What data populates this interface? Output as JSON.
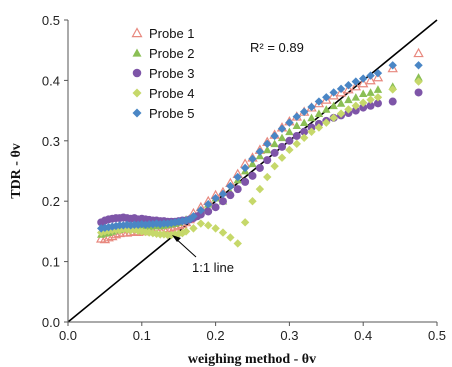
{
  "chart_data": {
    "type": "scatter",
    "xlim": [
      0,
      0.5
    ],
    "ylim": [
      0,
      0.5
    ],
    "xticks": [
      "0.0",
      "0.1",
      "0.2",
      "0.3",
      "0.4",
      "0.5"
    ],
    "yticks": [
      "0.0",
      "0.1",
      "0.2",
      "0.3",
      "0.4",
      "0.5"
    ],
    "xlabel": "weighing method - θv",
    "ylabel": "TDR - θv",
    "legend_position": "top-left",
    "grid": false,
    "annotations": {
      "r2_label": "R² = 0.89",
      "line_label": "1:1 line"
    },
    "reference_line": {
      "name": "1:1 line",
      "x": [
        0,
        0.5
      ],
      "y": [
        0,
        0.5
      ],
      "color": "#000000"
    },
    "series": [
      {
        "name": "Probe 1",
        "marker": "triangle-open",
        "color": "#E8887E",
        "points": [
          [
            0.045,
            0.138
          ],
          [
            0.05,
            0.137
          ],
          [
            0.055,
            0.14
          ],
          [
            0.06,
            0.142
          ],
          [
            0.065,
            0.145
          ],
          [
            0.07,
            0.147
          ],
          [
            0.075,
            0.148
          ],
          [
            0.08,
            0.148
          ],
          [
            0.085,
            0.149
          ],
          [
            0.09,
            0.15
          ],
          [
            0.095,
            0.149
          ],
          [
            0.1,
            0.151
          ],
          [
            0.105,
            0.15
          ],
          [
            0.11,
            0.152
          ],
          [
            0.115,
            0.151
          ],
          [
            0.12,
            0.153
          ],
          [
            0.125,
            0.152
          ],
          [
            0.13,
            0.154
          ],
          [
            0.135,
            0.155
          ],
          [
            0.14,
            0.156
          ],
          [
            0.145,
            0.158
          ],
          [
            0.15,
            0.16
          ],
          [
            0.155,
            0.162
          ],
          [
            0.16,
            0.165
          ],
          [
            0.165,
            0.17
          ],
          [
            0.17,
            0.18
          ],
          [
            0.18,
            0.19
          ],
          [
            0.19,
            0.2
          ],
          [
            0.2,
            0.21
          ],
          [
            0.21,
            0.215
          ],
          [
            0.22,
            0.23
          ],
          [
            0.23,
            0.245
          ],
          [
            0.24,
            0.262
          ],
          [
            0.25,
            0.272
          ],
          [
            0.26,
            0.285
          ],
          [
            0.27,
            0.298
          ],
          [
            0.28,
            0.31
          ],
          [
            0.29,
            0.322
          ],
          [
            0.3,
            0.332
          ],
          [
            0.31,
            0.34
          ],
          [
            0.32,
            0.348
          ],
          [
            0.33,
            0.355
          ],
          [
            0.34,
            0.362
          ],
          [
            0.35,
            0.368
          ],
          [
            0.36,
            0.375
          ],
          [
            0.37,
            0.38
          ],
          [
            0.38,
            0.385
          ],
          [
            0.39,
            0.39
          ],
          [
            0.4,
            0.395
          ],
          [
            0.41,
            0.4
          ],
          [
            0.42,
            0.405
          ],
          [
            0.44,
            0.42
          ],
          [
            0.475,
            0.445
          ]
        ]
      },
      {
        "name": "Probe 2",
        "marker": "triangle",
        "color": "#8BBF55",
        "points": [
          [
            0.045,
            0.145
          ],
          [
            0.05,
            0.147
          ],
          [
            0.055,
            0.148
          ],
          [
            0.06,
            0.15
          ],
          [
            0.065,
            0.152
          ],
          [
            0.07,
            0.153
          ],
          [
            0.075,
            0.155
          ],
          [
            0.08,
            0.155
          ],
          [
            0.085,
            0.156
          ],
          [
            0.09,
            0.157
          ],
          [
            0.095,
            0.156
          ],
          [
            0.1,
            0.158
          ],
          [
            0.105,
            0.157
          ],
          [
            0.11,
            0.158
          ],
          [
            0.115,
            0.159
          ],
          [
            0.12,
            0.16
          ],
          [
            0.125,
            0.159
          ],
          [
            0.13,
            0.16
          ],
          [
            0.135,
            0.161
          ],
          [
            0.14,
            0.162
          ],
          [
            0.145,
            0.163
          ],
          [
            0.15,
            0.165
          ],
          [
            0.155,
            0.167
          ],
          [
            0.16,
            0.17
          ],
          [
            0.17,
            0.175
          ],
          [
            0.18,
            0.185
          ],
          [
            0.19,
            0.195
          ],
          [
            0.2,
            0.205
          ],
          [
            0.21,
            0.2
          ],
          [
            0.22,
            0.215
          ],
          [
            0.23,
            0.235
          ],
          [
            0.24,
            0.25
          ],
          [
            0.25,
            0.262
          ],
          [
            0.26,
            0.275
          ],
          [
            0.27,
            0.285
          ],
          [
            0.28,
            0.295
          ],
          [
            0.29,
            0.305
          ],
          [
            0.3,
            0.315
          ],
          [
            0.31,
            0.325
          ],
          [
            0.32,
            0.33
          ],
          [
            0.33,
            0.338
          ],
          [
            0.34,
            0.345
          ],
          [
            0.35,
            0.352
          ],
          [
            0.36,
            0.358
          ],
          [
            0.37,
            0.362
          ],
          [
            0.38,
            0.368
          ],
          [
            0.39,
            0.372
          ],
          [
            0.4,
            0.378
          ],
          [
            0.41,
            0.38
          ],
          [
            0.42,
            0.385
          ],
          [
            0.44,
            0.39
          ],
          [
            0.475,
            0.405
          ]
        ]
      },
      {
        "name": "Probe 3",
        "marker": "circle",
        "color": "#7E55A8",
        "points": [
          [
            0.045,
            0.165
          ],
          [
            0.05,
            0.168
          ],
          [
            0.055,
            0.17
          ],
          [
            0.06,
            0.171
          ],
          [
            0.065,
            0.172
          ],
          [
            0.07,
            0.172
          ],
          [
            0.075,
            0.173
          ],
          [
            0.08,
            0.172
          ],
          [
            0.085,
            0.171
          ],
          [
            0.09,
            0.172
          ],
          [
            0.095,
            0.17
          ],
          [
            0.1,
            0.171
          ],
          [
            0.105,
            0.17
          ],
          [
            0.11,
            0.169
          ],
          [
            0.115,
            0.168
          ],
          [
            0.12,
            0.168
          ],
          [
            0.125,
            0.167
          ],
          [
            0.13,
            0.167
          ],
          [
            0.135,
            0.166
          ],
          [
            0.14,
            0.166
          ],
          [
            0.145,
            0.166
          ],
          [
            0.15,
            0.167
          ],
          [
            0.155,
            0.168
          ],
          [
            0.16,
            0.168
          ],
          [
            0.165,
            0.17
          ],
          [
            0.17,
            0.172
          ],
          [
            0.175,
            0.175
          ],
          [
            0.18,
            0.178
          ],
          [
            0.19,
            0.183
          ],
          [
            0.2,
            0.19
          ],
          [
            0.21,
            0.2
          ],
          [
            0.22,
            0.21
          ],
          [
            0.23,
            0.22
          ],
          [
            0.24,
            0.232
          ],
          [
            0.25,
            0.242
          ],
          [
            0.26,
            0.255
          ],
          [
            0.27,
            0.268
          ],
          [
            0.28,
            0.28
          ],
          [
            0.29,
            0.29
          ],
          [
            0.3,
            0.3
          ],
          [
            0.31,
            0.308
          ],
          [
            0.32,
            0.315
          ],
          [
            0.33,
            0.322
          ],
          [
            0.34,
            0.328
          ],
          [
            0.35,
            0.333
          ],
          [
            0.36,
            0.338
          ],
          [
            0.37,
            0.342
          ],
          [
            0.38,
            0.346
          ],
          [
            0.39,
            0.35
          ],
          [
            0.4,
            0.355
          ],
          [
            0.41,
            0.358
          ],
          [
            0.42,
            0.362
          ],
          [
            0.44,
            0.365
          ],
          [
            0.475,
            0.38
          ]
        ]
      },
      {
        "name": "Probe 4",
        "marker": "diamond",
        "color": "#C6D86A",
        "points": [
          [
            0.045,
            0.148
          ],
          [
            0.05,
            0.15
          ],
          [
            0.055,
            0.151
          ],
          [
            0.06,
            0.152
          ],
          [
            0.065,
            0.153
          ],
          [
            0.07,
            0.152
          ],
          [
            0.075,
            0.154
          ],
          [
            0.08,
            0.153
          ],
          [
            0.085,
            0.152
          ],
          [
            0.09,
            0.153
          ],
          [
            0.095,
            0.151
          ],
          [
            0.1,
            0.15
          ],
          [
            0.105,
            0.149
          ],
          [
            0.11,
            0.148
          ],
          [
            0.115,
            0.147
          ],
          [
            0.12,
            0.146
          ],
          [
            0.125,
            0.145
          ],
          [
            0.13,
            0.145
          ],
          [
            0.135,
            0.144
          ],
          [
            0.14,
            0.144
          ],
          [
            0.145,
            0.145
          ],
          [
            0.15,
            0.146
          ],
          [
            0.155,
            0.147
          ],
          [
            0.16,
            0.15
          ],
          [
            0.17,
            0.155
          ],
          [
            0.18,
            0.163
          ],
          [
            0.19,
            0.16
          ],
          [
            0.2,
            0.155
          ],
          [
            0.21,
            0.148
          ],
          [
            0.22,
            0.14
          ],
          [
            0.23,
            0.13
          ],
          [
            0.24,
            0.165
          ],
          [
            0.25,
            0.2
          ],
          [
            0.26,
            0.22
          ],
          [
            0.27,
            0.24
          ],
          [
            0.28,
            0.258
          ],
          [
            0.29,
            0.272
          ],
          [
            0.3,
            0.285
          ],
          [
            0.31,
            0.295
          ],
          [
            0.32,
            0.305
          ],
          [
            0.33,
            0.315
          ],
          [
            0.34,
            0.322
          ],
          [
            0.35,
            0.33
          ],
          [
            0.36,
            0.338
          ],
          [
            0.37,
            0.345
          ],
          [
            0.38,
            0.352
          ],
          [
            0.39,
            0.358
          ],
          [
            0.4,
            0.363
          ],
          [
            0.41,
            0.368
          ],
          [
            0.42,
            0.372
          ],
          [
            0.44,
            0.385
          ],
          [
            0.475,
            0.398
          ]
        ]
      },
      {
        "name": "Probe 5",
        "marker": "diamond",
        "color": "#4A86C5",
        "points": [
          [
            0.045,
            0.155
          ],
          [
            0.05,
            0.156
          ],
          [
            0.055,
            0.157
          ],
          [
            0.06,
            0.158
          ],
          [
            0.065,
            0.159
          ],
          [
            0.07,
            0.16
          ],
          [
            0.075,
            0.16
          ],
          [
            0.08,
            0.161
          ],
          [
            0.085,
            0.16
          ],
          [
            0.09,
            0.161
          ],
          [
            0.095,
            0.161
          ],
          [
            0.1,
            0.162
          ],
          [
            0.105,
            0.161
          ],
          [
            0.11,
            0.162
          ],
          [
            0.115,
            0.162
          ],
          [
            0.12,
            0.163
          ],
          [
            0.125,
            0.162
          ],
          [
            0.13,
            0.163
          ],
          [
            0.135,
            0.163
          ],
          [
            0.14,
            0.164
          ],
          [
            0.145,
            0.165
          ],
          [
            0.15,
            0.166
          ],
          [
            0.155,
            0.167
          ],
          [
            0.16,
            0.168
          ],
          [
            0.165,
            0.17
          ],
          [
            0.17,
            0.175
          ],
          [
            0.18,
            0.185
          ],
          [
            0.19,
            0.195
          ],
          [
            0.2,
            0.205
          ],
          [
            0.21,
            0.212
          ],
          [
            0.22,
            0.225
          ],
          [
            0.23,
            0.24
          ],
          [
            0.24,
            0.255
          ],
          [
            0.25,
            0.27
          ],
          [
            0.26,
            0.282
          ],
          [
            0.27,
            0.295
          ],
          [
            0.28,
            0.308
          ],
          [
            0.29,
            0.32
          ],
          [
            0.3,
            0.33
          ],
          [
            0.31,
            0.34
          ],
          [
            0.32,
            0.348
          ],
          [
            0.33,
            0.356
          ],
          [
            0.34,
            0.365
          ],
          [
            0.35,
            0.372
          ],
          [
            0.36,
            0.38
          ],
          [
            0.37,
            0.386
          ],
          [
            0.38,
            0.392
          ],
          [
            0.39,
            0.398
          ],
          [
            0.4,
            0.403
          ],
          [
            0.41,
            0.408
          ],
          [
            0.42,
            0.412
          ],
          [
            0.44,
            0.425
          ],
          [
            0.475,
            0.425
          ]
        ]
      }
    ]
  }
}
